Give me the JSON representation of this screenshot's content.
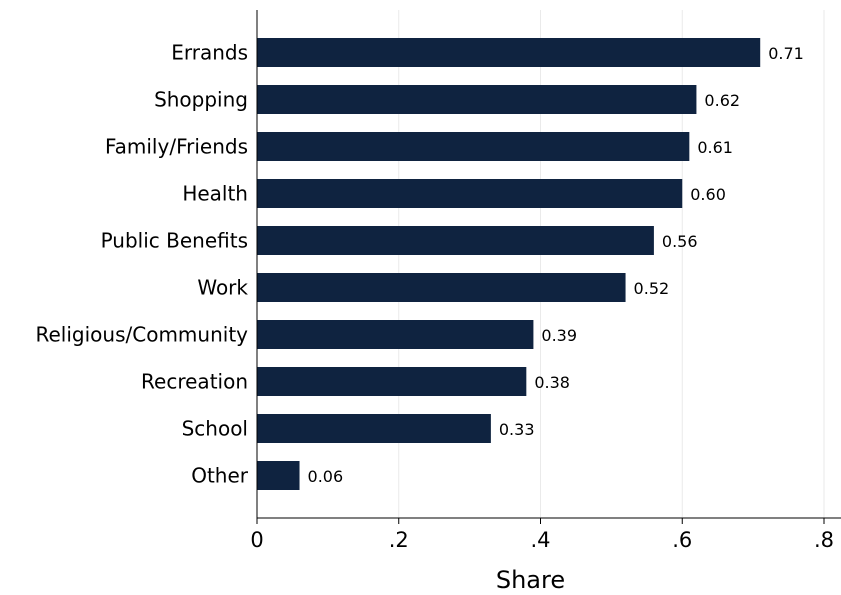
{
  "chart_data": {
    "type": "bar",
    "orientation": "horizontal",
    "categories": [
      "Errands",
      "Shopping",
      "Family/Friends",
      "Health",
      "Public Benefits",
      "Work",
      "Religious/Community",
      "Recreation",
      "School",
      "Other"
    ],
    "values": [
      0.71,
      0.62,
      0.61,
      0.6,
      0.56,
      0.52,
      0.39,
      0.38,
      0.33,
      0.06
    ],
    "value_labels": [
      "0.71",
      "0.62",
      "0.61",
      "0.60",
      "0.56",
      "0.52",
      "0.39",
      "0.38",
      "0.33",
      "0.06"
    ],
    "xlabel": "Share",
    "ylabel": "",
    "title": "",
    "xlim": [
      0,
      0.8
    ],
    "xticks": [
      0,
      0.2,
      0.4,
      0.6,
      0.8
    ],
    "xtick_labels": [
      "0",
      ".2",
      ".4",
      ".6",
      ".8"
    ],
    "grid": "vertical",
    "legend": "none",
    "bar_color": "#0f2340",
    "grid_color": "#eaeaea"
  }
}
